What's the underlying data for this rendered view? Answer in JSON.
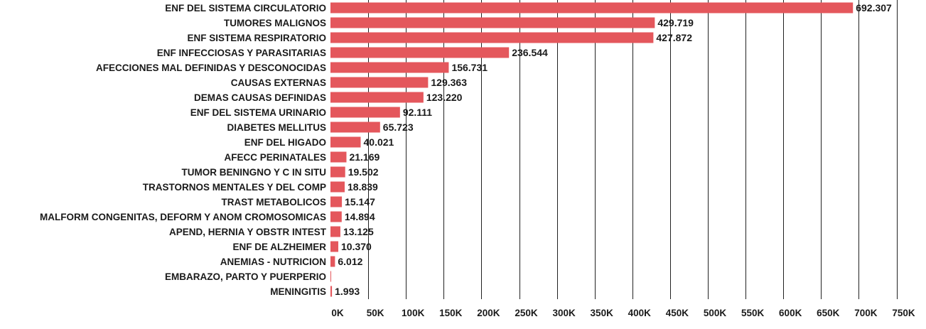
{
  "chart_data": {
    "type": "bar",
    "orientation": "horizontal",
    "categories": [
      "ENF DEL SISTEMA CIRCULATORIO",
      "TUMORES MALIGNOS",
      "ENF SISTEMA RESPIRATORIO",
      "ENF INFECCIOSAS Y PARASITARIAS",
      "AFECCIONES MAL DEFINIDAS Y DESCONOCIDAS",
      "CAUSAS EXTERNAS",
      "DEMAS CAUSAS DEFINIDAS",
      "ENF DEL SISTEMA URINARIO",
      "DIABETES MELLITUS",
      "ENF DEL HIGADO",
      "AFECC  PERINATALES",
      "TUMOR BENINGNO Y C IN SITU",
      "TRASTORNOS MENTALES Y DEL COMP",
      "TRAST METABOLICOS",
      "MALFORM  CONGENITAS, DEFORM  Y ANOM  CROMOSOMICAS",
      "APEND, HERNIA Y OBSTR INTEST",
      "ENF DE ALZHEIMER",
      "ANEMIAS - NUTRICION",
      "EMBARAZO, PARTO Y PUERPERIO",
      "MENINGITIS"
    ],
    "values": [
      692307,
      429719,
      427872,
      236544,
      156731,
      129363,
      123220,
      92111,
      65723,
      40021,
      21169,
      19502,
      18839,
      15147,
      14894,
      13125,
      10370,
      6012,
      500,
      1993
    ],
    "value_labels": [
      "692.307",
      "429.719",
      "427.872",
      "236.544",
      "156.731",
      "129.363",
      "123.220",
      "92.111",
      "65.723",
      "40.021",
      "21.169",
      "19.502",
      "18.839",
      "15.147",
      "14.894",
      "13.125",
      "10.370",
      "6.012",
      "",
      "1.993"
    ],
    "xlim": [
      0,
      750000
    ],
    "x_ticks": [
      0,
      50000,
      100000,
      150000,
      200000,
      250000,
      300000,
      350000,
      400000,
      450000,
      500000,
      550000,
      600000,
      650000,
      700000,
      750000
    ],
    "x_tick_labels": [
      "0K",
      "50K",
      "100K",
      "150K",
      "200K",
      "250K",
      "300K",
      "350K",
      "400K",
      "450K",
      "500K",
      "550K",
      "600K",
      "650K",
      "700K",
      "750K"
    ],
    "title": "",
    "xlabel": "",
    "ylabel": "",
    "grid": "vertical",
    "legend": "none",
    "colors": {
      "bar": "#e4575c",
      "grid": "#222222",
      "text": "#1a1a1a"
    }
  }
}
